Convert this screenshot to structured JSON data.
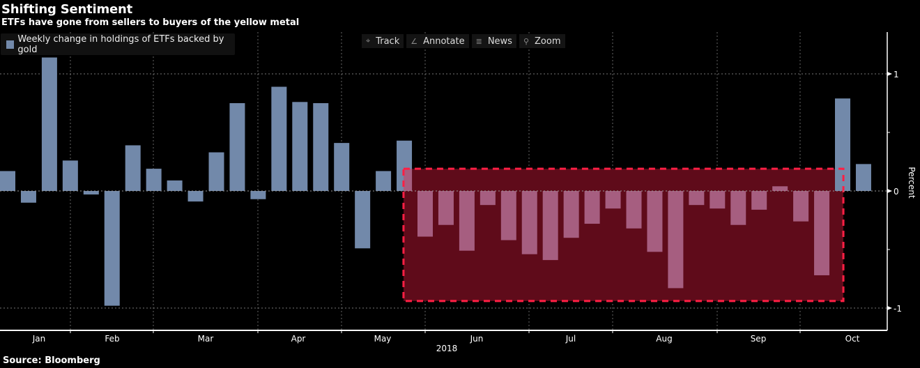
{
  "header": {
    "title": "Shifting Sentiment",
    "subtitle": "ETFs have gone from sellers to buyers of the yellow metal"
  },
  "legend": {
    "label": "Weekly change in holdings of ETFs backed by gold",
    "color": "#7289aa"
  },
  "toolbar": [
    {
      "label": "Track",
      "icon": "crosshair-icon",
      "glyph": "⌖"
    },
    {
      "label": "Annotate",
      "icon": "pencil-icon",
      "glyph": "∠"
    },
    {
      "label": "News",
      "icon": "news-icon",
      "glyph": "≣"
    },
    {
      "label": "Zoom",
      "icon": "magnifier-icon",
      "glyph": "⚲"
    }
  ],
  "source": "Source: Bloomberg",
  "chart_data": {
    "type": "bar",
    "title": "Shifting Sentiment",
    "subtitle": "ETFs have gone from sellers to buyers of the yellow metal",
    "xlabel": "2018",
    "ylabel": "Percent",
    "ylim": [
      -1.15,
      1.3
    ],
    "yticks": [
      -1,
      0,
      1
    ],
    "x_month_labels": [
      "Jan",
      "Feb",
      "Mar",
      "Apr",
      "May",
      "Jun",
      "Jul",
      "Aug",
      "Sep",
      "Oct"
    ],
    "year_label": "2018",
    "grid": true,
    "legend_position": "top-left",
    "series": [
      {
        "name": "Weekly change in holdings of ETFs backed by gold",
        "color": "#7289aa",
        "highlight_color": "#a65e80",
        "values": [
          0.17,
          -0.1,
          1.14,
          0.26,
          -0.03,
          -0.98,
          0.39,
          0.19,
          0.09,
          -0.09,
          0.33,
          0.75,
          -0.07,
          0.89,
          0.76,
          0.75,
          0.41,
          -0.49,
          0.17,
          0.43,
          -0.39,
          -0.29,
          -0.51,
          -0.12,
          -0.42,
          -0.54,
          -0.59,
          -0.4,
          -0.28,
          -0.15,
          -0.32,
          -0.52,
          -0.83,
          -0.12,
          -0.15,
          -0.29,
          -0.16,
          0.04,
          -0.26,
          -0.72,
          0.79,
          0.23
        ]
      }
    ],
    "highlight": {
      "from_index": 19,
      "to_index": 39,
      "ymin": -0.94,
      "ymax": 0.19,
      "fill": "#5f0b1a",
      "border": "#ff1f44",
      "note": "selling period highlighted"
    }
  }
}
